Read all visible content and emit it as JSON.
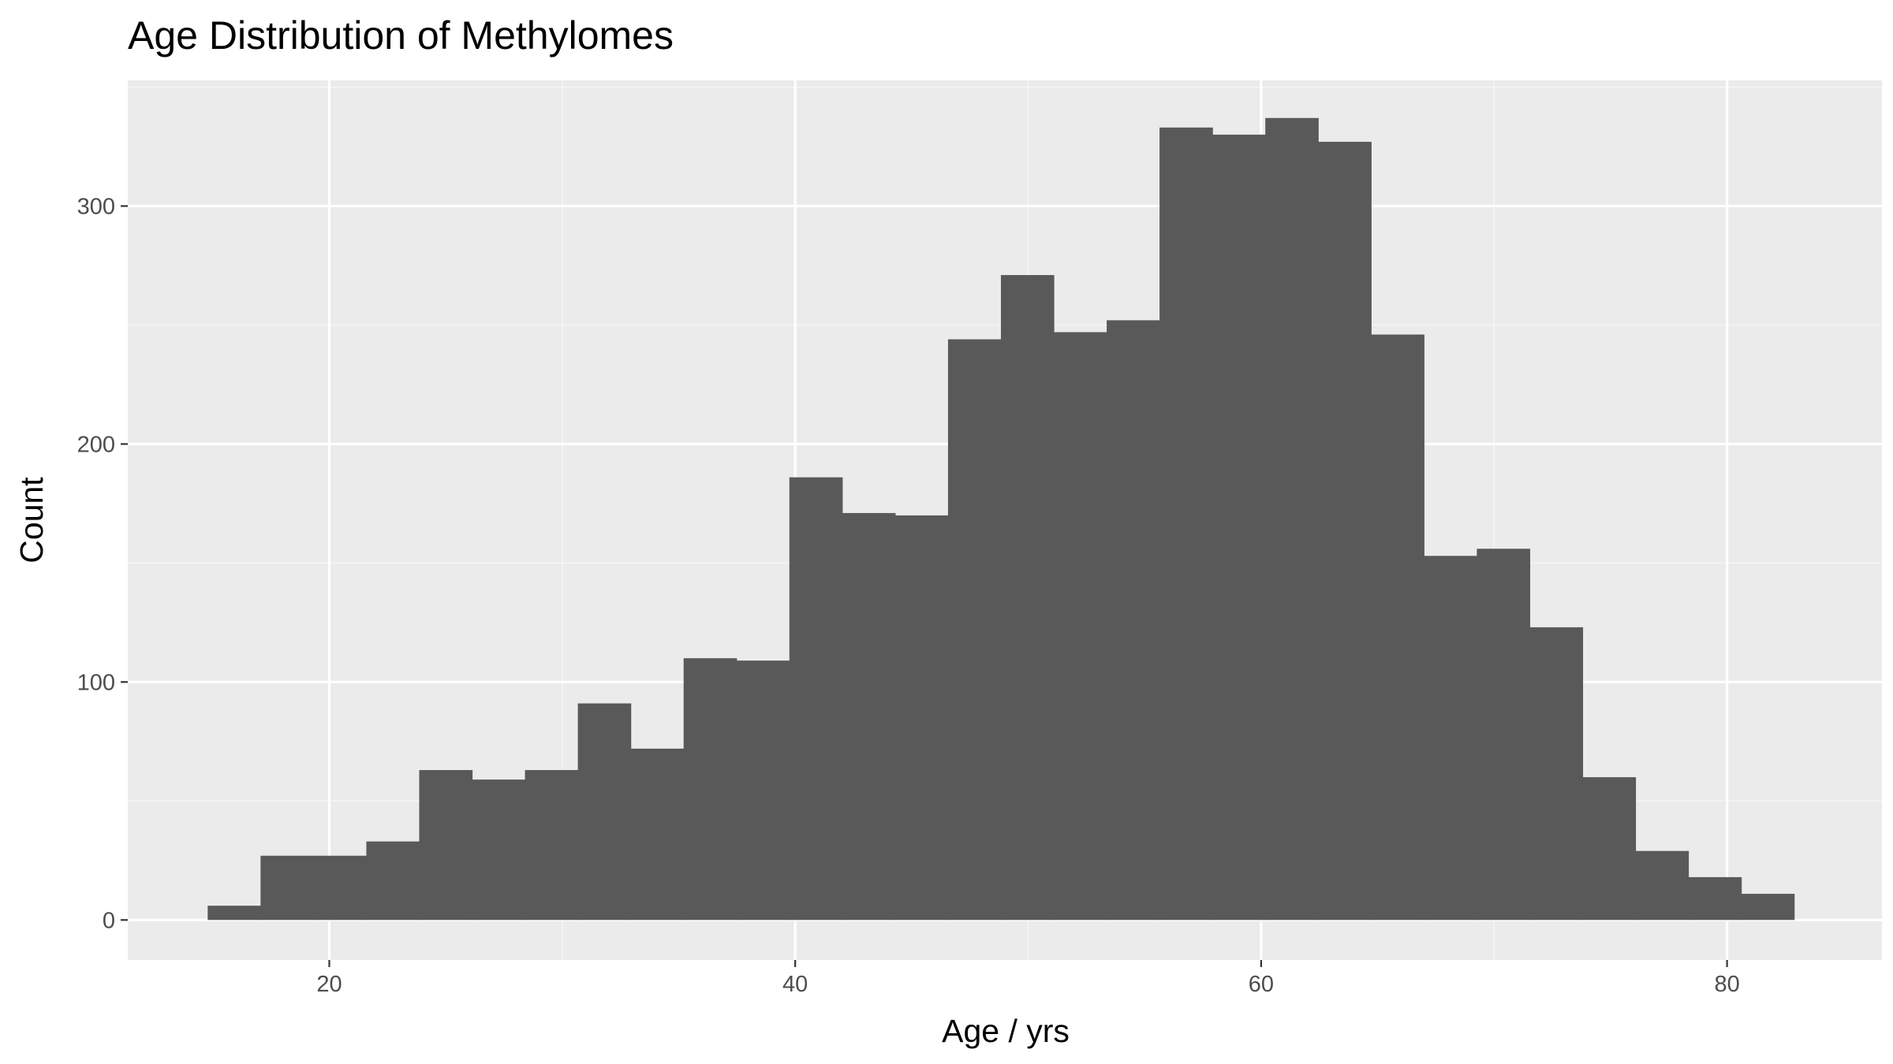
{
  "chart_data": {
    "type": "bar",
    "title": "Age Distribution of Methylomes",
    "xlabel": "Age / yrs",
    "ylabel": "Count",
    "xlim": [
      11.35,
      86.65
    ],
    "ylim": [
      -16.8,
      352.8
    ],
    "x_ticks": [
      20,
      40,
      60,
      80
    ],
    "y_ticks": [
      0,
      100,
      200,
      300
    ],
    "x_tick_labels": [
      "20",
      "40",
      "60",
      "80"
    ],
    "y_tick_labels": [
      "0",
      "100",
      "200",
      "300"
    ],
    "bin_width": 2.27,
    "bins": [
      {
        "start": 14.78,
        "end": 17.05,
        "count": 6
      },
      {
        "start": 17.05,
        "end": 19.32,
        "count": 27
      },
      {
        "start": 19.32,
        "end": 21.59,
        "count": 27
      },
      {
        "start": 21.59,
        "end": 23.86,
        "count": 33
      },
      {
        "start": 23.86,
        "end": 26.13,
        "count": 63
      },
      {
        "start": 26.13,
        "end": 28.4,
        "count": 59
      },
      {
        "start": 28.4,
        "end": 30.67,
        "count": 63
      },
      {
        "start": 30.67,
        "end": 32.94,
        "count": 91
      },
      {
        "start": 32.94,
        "end": 35.21,
        "count": 72
      },
      {
        "start": 35.21,
        "end": 37.48,
        "count": 110
      },
      {
        "start": 37.48,
        "end": 39.75,
        "count": 109
      },
      {
        "start": 39.75,
        "end": 42.02,
        "count": 186
      },
      {
        "start": 42.02,
        "end": 44.29,
        "count": 171
      },
      {
        "start": 44.29,
        "end": 46.56,
        "count": 170
      },
      {
        "start": 46.56,
        "end": 48.83,
        "count": 244
      },
      {
        "start": 48.83,
        "end": 51.1,
        "count": 271
      },
      {
        "start": 51.1,
        "end": 53.37,
        "count": 247
      },
      {
        "start": 53.37,
        "end": 55.64,
        "count": 252
      },
      {
        "start": 55.64,
        "end": 57.91,
        "count": 333
      },
      {
        "start": 57.91,
        "end": 60.18,
        "count": 330
      },
      {
        "start": 60.18,
        "end": 62.45,
        "count": 337
      },
      {
        "start": 62.45,
        "end": 64.72,
        "count": 327
      },
      {
        "start": 64.72,
        "end": 66.99,
        "count": 246
      },
      {
        "start": 66.99,
        "end": 69.26,
        "count": 153
      },
      {
        "start": 69.26,
        "end": 71.53,
        "count": 156
      },
      {
        "start": 71.53,
        "end": 73.8,
        "count": 123
      },
      {
        "start": 73.8,
        "end": 76.07,
        "count": 60
      },
      {
        "start": 76.07,
        "end": 78.34,
        "count": 29
      },
      {
        "start": 78.34,
        "end": 80.61,
        "count": 18
      },
      {
        "start": 80.61,
        "end": 82.88,
        "count": 11
      }
    ],
    "grid": true,
    "legend": "none",
    "colors": {
      "panel_background": "#ebebeb",
      "grid_major": "#ffffff",
      "grid_minor": "#f5f5f5",
      "bar_fill": "#595959",
      "tick_color": "#333333",
      "tick_label_color": "#4d4d4d"
    }
  }
}
